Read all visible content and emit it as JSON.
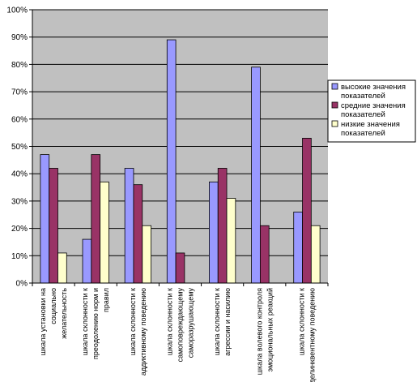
{
  "chart_data": {
    "type": "bar",
    "title": "",
    "xlabel": "",
    "ylabel": "",
    "ylim": [
      0,
      100
    ],
    "y_ticks": [
      "0%",
      "10%",
      "20%",
      "30%",
      "40%",
      "50%",
      "60%",
      "70%",
      "80%",
      "90%",
      "100%"
    ],
    "grid": true,
    "legend_position": "right",
    "categories": [
      [
        "шкала установки на",
        "социально",
        "желательность"
      ],
      [
        "шкала склонности к",
        "преодолению норм и",
        "правил"
      ],
      [
        "шкала склонности к",
        "аддиктивному поведению"
      ],
      [
        "шкала склонности к",
        "самоповреждающему",
        "саморазрушающему"
      ],
      [
        "шкала склонности к",
        "агрессии и насилию"
      ],
      [
        "шкала волевого контроля",
        "эмоциональных реакций"
      ],
      [
        "шкала склонности к",
        "делинквентному поведению"
      ]
    ],
    "series": [
      {
        "name": [
          "высокие значения",
          "показателей"
        ],
        "color": "#9999ff",
        "values": [
          47,
          16,
          42,
          89,
          37,
          79,
          26
        ]
      },
      {
        "name": [
          "средние значения",
          "показателей"
        ],
        "color": "#993366",
        "values": [
          42,
          47,
          36,
          11,
          42,
          21,
          53
        ]
      },
      {
        "name": [
          "низкие значения",
          "показателей"
        ],
        "color": "#ffffcc",
        "values": [
          11,
          37,
          21,
          0,
          31,
          0,
          21
        ]
      }
    ],
    "plot_background": "#c0c0c0"
  }
}
